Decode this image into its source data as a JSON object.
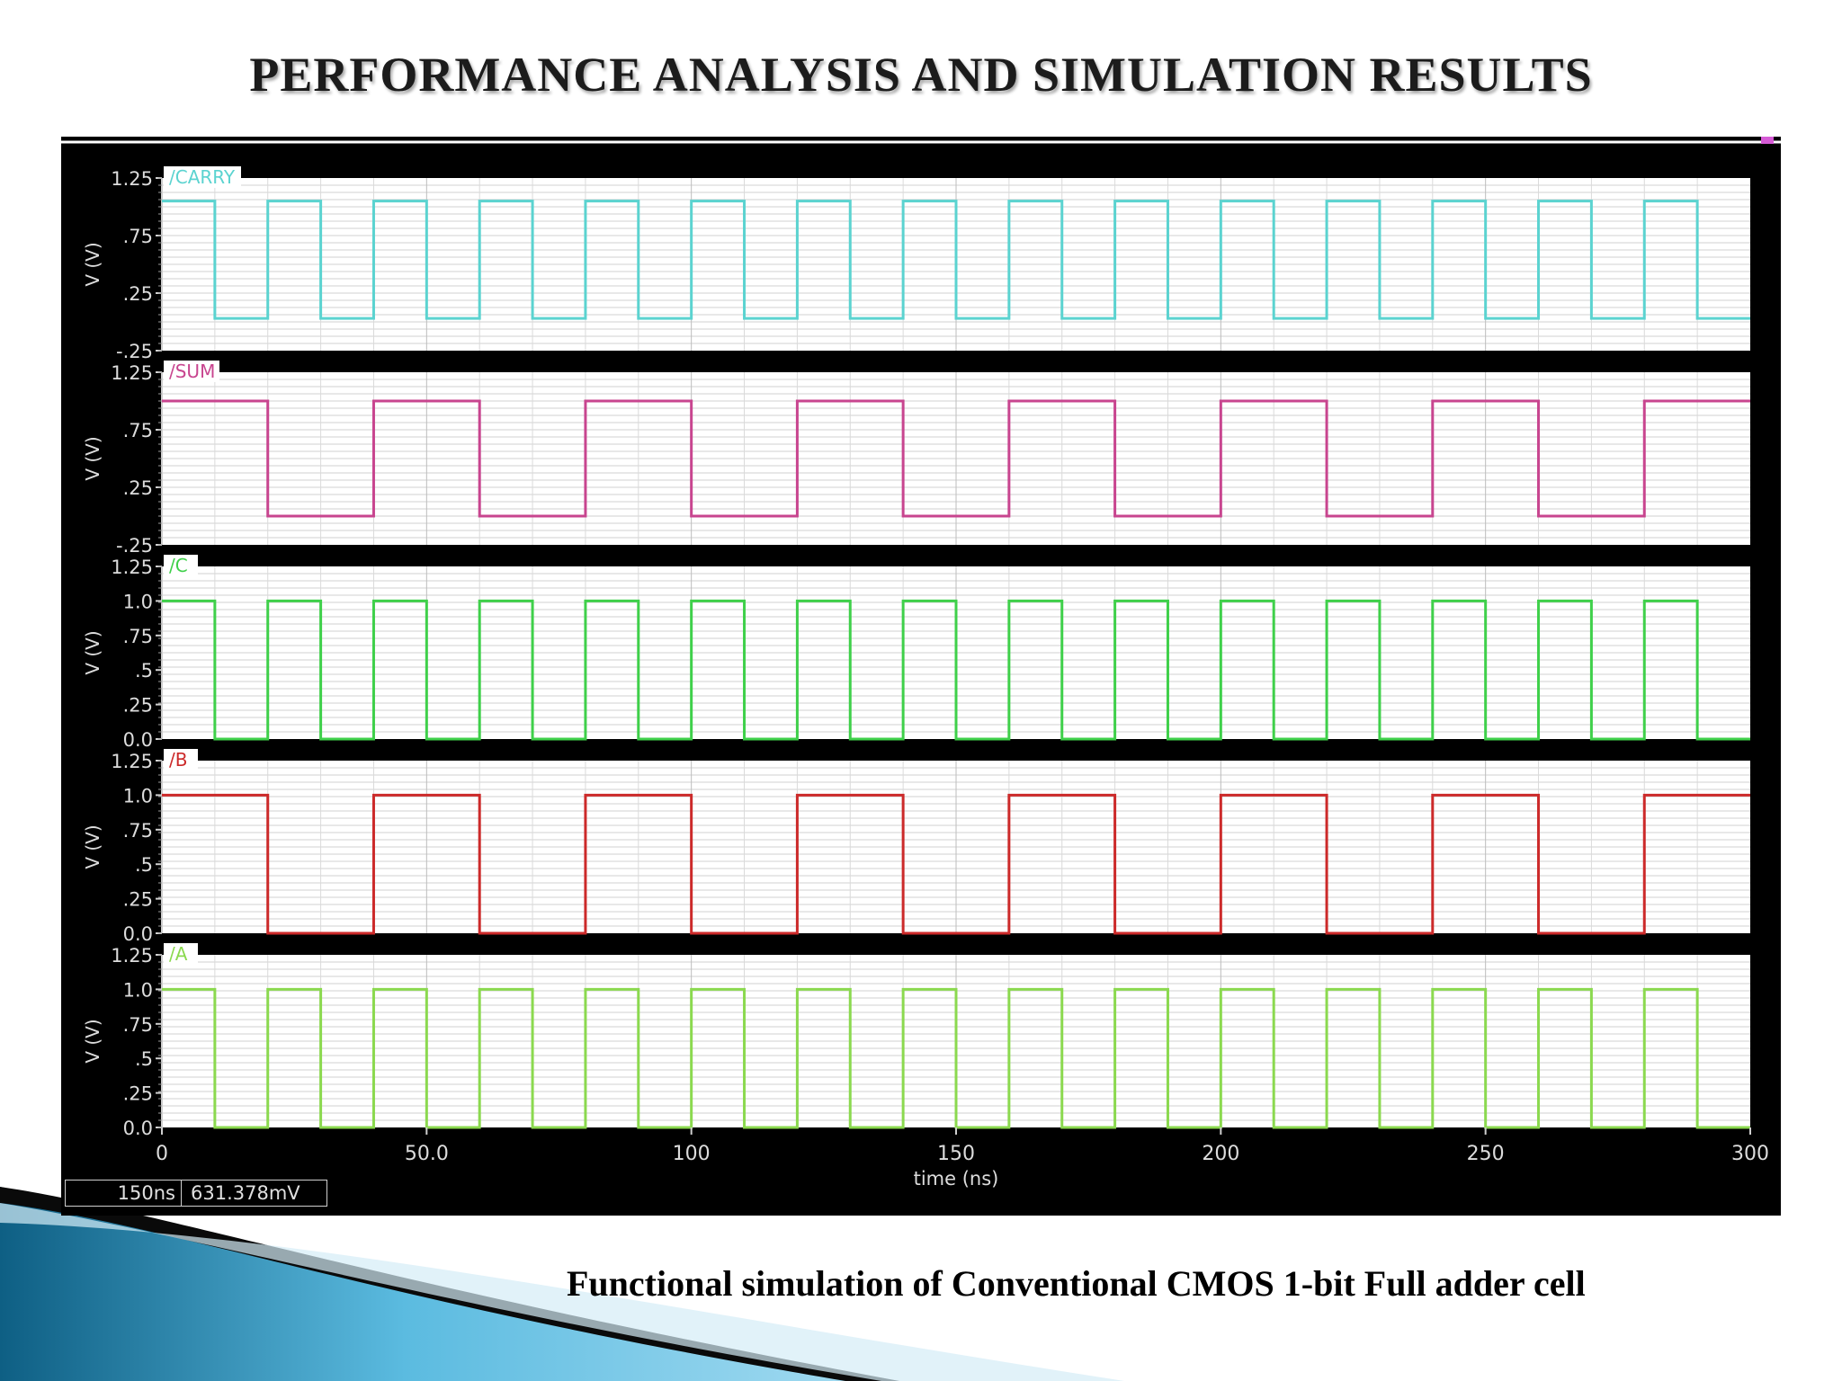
{
  "slide": {
    "title": "PERFORMANCE ANALYSIS AND SIMULATION RESULTS",
    "caption": "Functional simulation of Conventional CMOS 1-bit Full adder cell"
  },
  "cursor": {
    "time": "150ns",
    "value": "631.378mV"
  },
  "colors": {
    "background": "#000000",
    "panel": "#ffffff",
    "carry": "#5bd3d0",
    "sum": "#c8458f",
    "c": "#3fd04a",
    "b": "#cc2a2a",
    "a": "#8bd94f",
    "deco_dark": "#0e5f84",
    "deco_light": "#5bbbe0"
  },
  "chart_data": {
    "type": "line",
    "xlabel": "time (ns)",
    "xlim": [
      0,
      300
    ],
    "x_ticks": [
      "0",
      "50.0",
      "100",
      "150",
      "200",
      "250",
      "300"
    ],
    "x_tick_values": [
      0,
      50,
      100,
      150,
      200,
      250,
      300
    ],
    "grid": true,
    "panels": [
      {
        "name": "/CARRY",
        "ylabel": "V (V)",
        "ylim": [
          -0.25,
          1.25
        ],
        "y_ticks": [
          "1.25",
          ".75",
          ".25",
          "-.25"
        ],
        "y_tick_values": [
          1.25,
          0.75,
          0.25,
          -0.25
        ],
        "color_key": "carry",
        "high": 1.05,
        "low": 0.03,
        "transitions": [
          10,
          20,
          30,
          40,
          50,
          60,
          70,
          80,
          90,
          100,
          110,
          120,
          130,
          140,
          150,
          160,
          170,
          180,
          190,
          200,
          210,
          220,
          230,
          240,
          250,
          260,
          270,
          280,
          290
        ]
      },
      {
        "name": "/SUM",
        "ylabel": "V (V)",
        "ylim": [
          -0.25,
          1.25
        ],
        "y_ticks": [
          "1.25",
          ".75",
          ".25",
          "-.25"
        ],
        "y_tick_values": [
          1.25,
          0.75,
          0.25,
          -0.25
        ],
        "color_key": "sum",
        "high": 1.0,
        "low": 0.0,
        "transitions": [
          20,
          40,
          60,
          80,
          100,
          120,
          140,
          160,
          180,
          200,
          220,
          240,
          260,
          280
        ]
      },
      {
        "name": "/C",
        "ylabel": "V (V)",
        "ylim": [
          0,
          1.25
        ],
        "y_ticks": [
          "1.25",
          "1.0",
          ".75",
          ".5",
          ".25",
          "0.0"
        ],
        "y_tick_values": [
          1.25,
          1.0,
          0.75,
          0.5,
          0.25,
          0.0
        ],
        "color_key": "c",
        "high": 1.0,
        "low": 0.0,
        "transitions": [
          10,
          20,
          30,
          40,
          50,
          60,
          70,
          80,
          90,
          100,
          110,
          120,
          130,
          140,
          150,
          160,
          170,
          180,
          190,
          200,
          210,
          220,
          230,
          240,
          250,
          260,
          270,
          280,
          290
        ]
      },
      {
        "name": "/B",
        "ylabel": "V (V)",
        "ylim": [
          0,
          1.25
        ],
        "y_ticks": [
          "1.25",
          "1.0",
          ".75",
          ".5",
          ".25",
          "0.0"
        ],
        "y_tick_values": [
          1.25,
          1.0,
          0.75,
          0.5,
          0.25,
          0.0
        ],
        "color_key": "b",
        "high": 1.0,
        "low": 0.0,
        "transitions": [
          20,
          40,
          60,
          80,
          100,
          120,
          140,
          160,
          180,
          200,
          220,
          240,
          260,
          280
        ]
      },
      {
        "name": "/A",
        "ylabel": "V (V)",
        "ylim": [
          0,
          1.25
        ],
        "y_ticks": [
          "1.25",
          "1.0",
          ".75",
          ".5",
          ".25",
          "0.0"
        ],
        "y_tick_values": [
          1.25,
          1.0,
          0.75,
          0.5,
          0.25,
          0.0
        ],
        "color_key": "a",
        "high": 1.0,
        "low": 0.0,
        "transitions": [
          10,
          20,
          30,
          40,
          50,
          60,
          70,
          80,
          90,
          100,
          110,
          120,
          130,
          140,
          150,
          160,
          170,
          180,
          190,
          200,
          210,
          220,
          230,
          240,
          250,
          260,
          270,
          280,
          290
        ]
      }
    ]
  }
}
